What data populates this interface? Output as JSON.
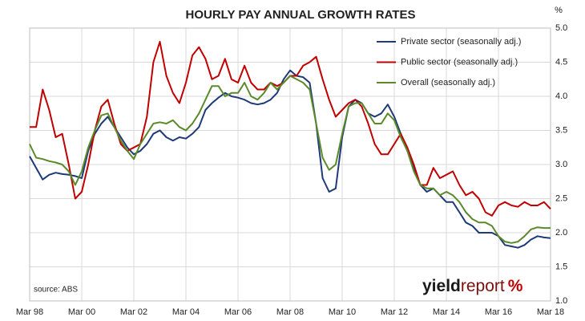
{
  "chart_data": {
    "type": "line",
    "title": "HOURLY PAY ANNUAL GROWTH RATES",
    "y_label": "%",
    "source": "source: ABS",
    "logo": [
      "yield",
      "report",
      "%"
    ],
    "categories": [
      "Mar 98",
      null,
      null,
      null,
      null,
      null,
      null,
      null,
      "Mar 00",
      null,
      null,
      null,
      null,
      null,
      null,
      null,
      "Mar 02",
      null,
      null,
      null,
      null,
      null,
      null,
      null,
      "Mar 04",
      null,
      null,
      null,
      null,
      null,
      null,
      null,
      "Mar 06",
      null,
      null,
      null,
      null,
      null,
      null,
      null,
      "Mar 08",
      null,
      null,
      null,
      null,
      null,
      null,
      null,
      "Mar 10",
      null,
      null,
      null,
      null,
      null,
      null,
      null,
      "Mar 12",
      null,
      null,
      null,
      null,
      null,
      null,
      null,
      "Mar 14",
      null,
      null,
      null,
      null,
      null,
      null,
      null,
      "Mar 16",
      null,
      null,
      null,
      null,
      null,
      null,
      null,
      "Mar 18"
    ],
    "series": [
      {
        "name": "Private sector (seasonally adj.)",
        "color": "#1f3a78",
        "values": [
          3.12,
          2.95,
          2.78,
          2.85,
          2.88,
          2.86,
          2.85,
          2.83,
          2.8,
          3.2,
          3.45,
          3.6,
          3.7,
          3.55,
          3.4,
          3.25,
          3.15,
          3.2,
          3.3,
          3.45,
          3.5,
          3.4,
          3.35,
          3.4,
          3.38,
          3.45,
          3.55,
          3.8,
          3.9,
          3.98,
          4.05,
          4.0,
          3.98,
          3.95,
          3.9,
          3.88,
          3.9,
          3.95,
          4.05,
          4.25,
          4.38,
          4.3,
          4.28,
          4.2,
          3.6,
          2.8,
          2.6,
          2.65,
          3.4,
          3.85,
          3.95,
          3.9,
          3.75,
          3.7,
          3.75,
          3.88,
          3.7,
          3.45,
          3.2,
          2.95,
          2.7,
          2.6,
          2.65,
          2.55,
          2.45,
          2.45,
          2.3,
          2.15,
          2.1,
          2.0,
          2.0,
          2.0,
          1.95,
          1.82,
          1.8,
          1.78,
          1.82,
          1.9,
          1.95,
          1.93,
          1.92
        ]
      },
      {
        "name": "Public sector (seasonally adj.)",
        "color": "#c00000",
        "values": [
          3.55,
          3.55,
          4.1,
          3.8,
          3.4,
          3.45,
          3.0,
          2.5,
          2.6,
          3.0,
          3.5,
          3.85,
          3.95,
          3.6,
          3.3,
          3.2,
          3.25,
          3.3,
          3.7,
          4.5,
          4.8,
          4.3,
          4.05,
          3.9,
          4.2,
          4.6,
          4.72,
          4.55,
          4.25,
          4.3,
          4.55,
          4.25,
          4.2,
          4.45,
          4.2,
          4.1,
          4.1,
          4.2,
          4.15,
          4.2,
          4.3,
          4.3,
          4.45,
          4.5,
          4.58,
          4.25,
          3.95,
          3.7,
          3.8,
          3.9,
          3.95,
          3.85,
          3.6,
          3.3,
          3.15,
          3.15,
          3.3,
          3.45,
          3.25,
          3.0,
          2.7,
          2.7,
          2.95,
          2.8,
          2.85,
          2.9,
          2.7,
          2.55,
          2.6,
          2.5,
          2.3,
          2.25,
          2.4,
          2.45,
          2.4,
          2.38,
          2.45,
          2.4,
          2.4,
          2.45,
          2.35
        ]
      },
      {
        "name": "Overall (seasonally adj.)",
        "color": "#5a8a2a",
        "values": [
          3.3,
          3.1,
          3.08,
          3.05,
          3.03,
          3.0,
          2.9,
          2.7,
          2.9,
          3.25,
          3.5,
          3.72,
          3.75,
          3.55,
          3.35,
          3.2,
          3.08,
          3.3,
          3.45,
          3.6,
          3.62,
          3.6,
          3.65,
          3.55,
          3.5,
          3.6,
          3.75,
          3.95,
          4.15,
          4.15,
          4.0,
          4.05,
          4.05,
          4.2,
          4.0,
          3.95,
          4.05,
          4.2,
          4.1,
          4.2,
          4.3,
          4.25,
          4.2,
          4.1,
          3.6,
          3.1,
          2.92,
          3.0,
          3.45,
          3.85,
          3.9,
          3.9,
          3.75,
          3.6,
          3.6,
          3.75,
          3.65,
          3.4,
          3.2,
          2.9,
          2.7,
          2.65,
          2.65,
          2.55,
          2.6,
          2.55,
          2.45,
          2.3,
          2.2,
          2.15,
          2.15,
          2.1,
          1.95,
          1.87,
          1.85,
          1.87,
          1.95,
          2.05,
          2.08,
          2.07,
          2.07
        ]
      }
    ],
    "ylim": [
      1,
      5
    ],
    "yticks": [
      {
        "value": 1,
        "label": "1.0"
      },
      1.5,
      {
        "value": 2,
        "label": "2.0"
      },
      2.5,
      {
        "value": 3,
        "label": "3.0"
      },
      3.5,
      {
        "value": 4,
        "label": "4.0"
      },
      4.5,
      {
        "value": 5,
        "label": "5.0"
      }
    ],
    "grid": true,
    "legend": "upper right"
  }
}
